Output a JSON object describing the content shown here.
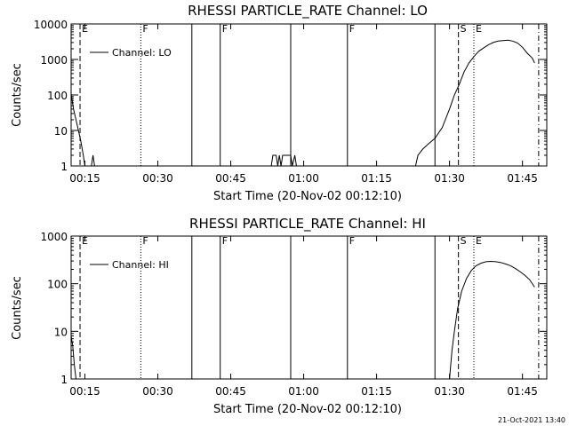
{
  "chart_data": [
    {
      "type": "line",
      "title": "RHESSI PARTICLE_RATE Channel: LO",
      "xlabel": "Start Time (20-Nov-02 00:12:10)",
      "ylabel": "Counts/sec",
      "xlim": [
        "00:12:10",
        "01:50:00"
      ],
      "ylim": [
        1,
        10000
      ],
      "yscale": "log",
      "x_ticks": [
        "00:15",
        "00:30",
        "00:45",
        "01:00",
        "01:15",
        "01:30",
        "01:45"
      ],
      "y_ticks": [
        "1",
        "10",
        "100",
        "1000",
        "10000"
      ],
      "legend": {
        "entries": [
          "Channel: LO"
        ],
        "position": "top-left"
      },
      "grid": false,
      "series": [
        {
          "name": "Channel: LO",
          "points": [
            [
              "00:12:10",
              110
            ],
            [
              "00:12:40",
              40
            ],
            [
              "00:13:10",
              20
            ],
            [
              "00:13:40",
              10
            ],
            [
              "00:14:10",
              5
            ],
            [
              "00:14:40",
              2
            ],
            [
              "00:15:00",
              1
            ],
            [
              "00:16:20",
              1
            ],
            [
              "00:16:40",
              2
            ],
            [
              "00:17:00",
              1
            ],
            [
              "00:53:20",
              1
            ],
            [
              "00:53:40",
              2
            ],
            [
              "00:54:20",
              2
            ],
            [
              "00:54:40",
              1
            ],
            [
              "00:55:00",
              2
            ],
            [
              "00:55:20",
              1
            ],
            [
              "00:55:40",
              2
            ],
            [
              "00:57:20",
              2
            ],
            [
              "00:57:40",
              1
            ],
            [
              "00:58:10",
              2
            ],
            [
              "00:58:30",
              1
            ],
            [
              "01:23:00",
              1
            ],
            [
              "01:23:30",
              2
            ],
            [
              "01:24:30",
              3
            ],
            [
              "01:25:30",
              4
            ],
            [
              "01:27:00",
              6
            ],
            [
              "01:28:30",
              12
            ],
            [
              "01:30:00",
              40
            ],
            [
              "01:31:00",
              100
            ],
            [
              "01:32:00",
              200
            ],
            [
              "01:33:00",
              450
            ],
            [
              "01:34:00",
              800
            ],
            [
              "01:35:00",
              1200
            ],
            [
              "01:36:00",
              1700
            ],
            [
              "01:37:00",
              2100
            ],
            [
              "01:38:00",
              2600
            ],
            [
              "01:39:00",
              3000
            ],
            [
              "01:40:00",
              3300
            ],
            [
              "01:41:00",
              3400
            ],
            [
              "01:42:00",
              3500
            ],
            [
              "01:43:00",
              3300
            ],
            [
              "01:44:00",
              2900
            ],
            [
              "01:45:00",
              2200
            ],
            [
              "01:46:00",
              1500
            ],
            [
              "01:47:00",
              1100
            ],
            [
              "01:47:30",
              800
            ]
          ]
        }
      ]
    },
    {
      "type": "line",
      "title": "RHESSI PARTICLE_RATE Channel: HI",
      "xlabel": "Start Time (20-Nov-02 00:12:10)",
      "ylabel": "Counts/sec",
      "xlim": [
        "00:12:10",
        "01:50:00"
      ],
      "ylim": [
        1,
        1000
      ],
      "yscale": "log",
      "x_ticks": [
        "00:15",
        "00:30",
        "00:45",
        "01:00",
        "01:15",
        "01:30",
        "01:45"
      ],
      "y_ticks": [
        "1",
        "10",
        "100",
        "1000"
      ],
      "legend": {
        "entries": [
          "Channel: HI"
        ],
        "position": "top-left"
      },
      "grid": false,
      "series": [
        {
          "name": "Channel: HI",
          "points": [
            [
              "00:12:10",
              8
            ],
            [
              "00:12:30",
              5
            ],
            [
              "00:12:50",
              2
            ],
            [
              "00:13:10",
              1
            ],
            [
              "01:30:00",
              1
            ],
            [
              "01:30:30",
              4
            ],
            [
              "01:31:00",
              10
            ],
            [
              "01:31:40",
              30
            ],
            [
              "01:32:30",
              70
            ],
            [
              "01:33:30",
              130
            ],
            [
              "01:34:30",
              190
            ],
            [
              "01:35:30",
              240
            ],
            [
              "01:36:30",
              270
            ],
            [
              "01:37:30",
              290
            ],
            [
              "01:38:30",
              295
            ],
            [
              "01:39:30",
              290
            ],
            [
              "01:40:30",
              280
            ],
            [
              "01:41:30",
              260
            ],
            [
              "01:42:30",
              240
            ],
            [
              "01:43:30",
              210
            ],
            [
              "01:44:30",
              180
            ],
            [
              "01:45:30",
              150
            ],
            [
              "01:46:30",
              120
            ],
            [
              "01:47:30",
              85
            ]
          ]
        }
      ]
    }
  ],
  "markers": [
    {
      "time": "00:14:00",
      "style": "dashed",
      "label": "E"
    },
    {
      "time": "00:26:30",
      "style": "dotted",
      "label": "F"
    },
    {
      "time": "00:37:00",
      "style": "solid",
      "label": ""
    },
    {
      "time": "00:42:50",
      "style": "solid",
      "label": "F"
    },
    {
      "time": "00:57:20",
      "style": "solid",
      "label": ""
    },
    {
      "time": "01:09:00",
      "style": "solid",
      "label": "F"
    },
    {
      "time": "01:27:00",
      "style": "solid",
      "label": ""
    },
    {
      "time": "01:31:50",
      "style": "dashed",
      "label": "S"
    },
    {
      "time": "01:35:00",
      "style": "dotted",
      "label": "E"
    },
    {
      "time": "01:48:20",
      "style": "dashdot",
      "label": ""
    }
  ],
  "timestamp": "21-Oct-2021 13:40"
}
